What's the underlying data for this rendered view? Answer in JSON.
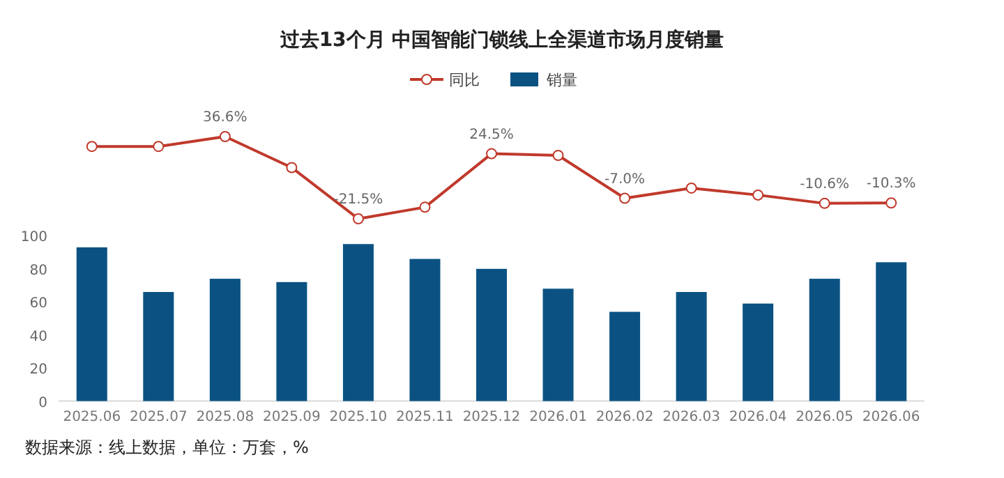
{
  "chart_data": [
    {
      "type": "line",
      "title": "过去13个月 中国智能门锁线上全渠道市场月度销量",
      "categories": [
        "2025.06",
        "2025.07",
        "2025.08",
        "2025.09",
        "2025.10",
        "2025.11",
        "2025.12",
        "2026.01",
        "2026.02",
        "2026.03",
        "2026.04",
        "2026.05",
        "2026.06"
      ],
      "series": [
        {
          "name": "同比",
          "color": "#c0392b",
          "values": [
            29.6,
            29.6,
            36.6,
            14.7,
            -21.5,
            -13.3,
            24.5,
            23.3,
            -7.0,
            0.2,
            -4.7,
            -10.6,
            -10.3
          ],
          "value_labels": [
            null,
            null,
            "36.6%",
            null,
            "-21.5%",
            null,
            "24.5%",
            null,
            "-7.0%",
            null,
            null,
            "-10.6%",
            "-10.3%"
          ]
        }
      ],
      "tick_labels": false,
      "legend": "top",
      "marker": "circle"
    },
    {
      "type": "bar",
      "categories": [
        "2025.06",
        "2025.07",
        "2025.08",
        "2025.09",
        "2025.10",
        "2025.11",
        "2025.12",
        "2026.01",
        "2026.02",
        "2026.03",
        "2026.04",
        "2026.05",
        "2026.06"
      ],
      "series": [
        {
          "name": "销量",
          "color": "#0b5283",
          "values": [
            93,
            66,
            74,
            72,
            95,
            86,
            80,
            68,
            54,
            66,
            59,
            74,
            84
          ]
        }
      ],
      "ylim": [
        0,
        100
      ],
      "yticks": [
        0,
        20,
        40,
        60,
        80,
        100
      ],
      "tick_labels": "xy",
      "legend": "top",
      "annotations": [
        "数据来源：线上数据，单位：万套，%"
      ]
    }
  ]
}
